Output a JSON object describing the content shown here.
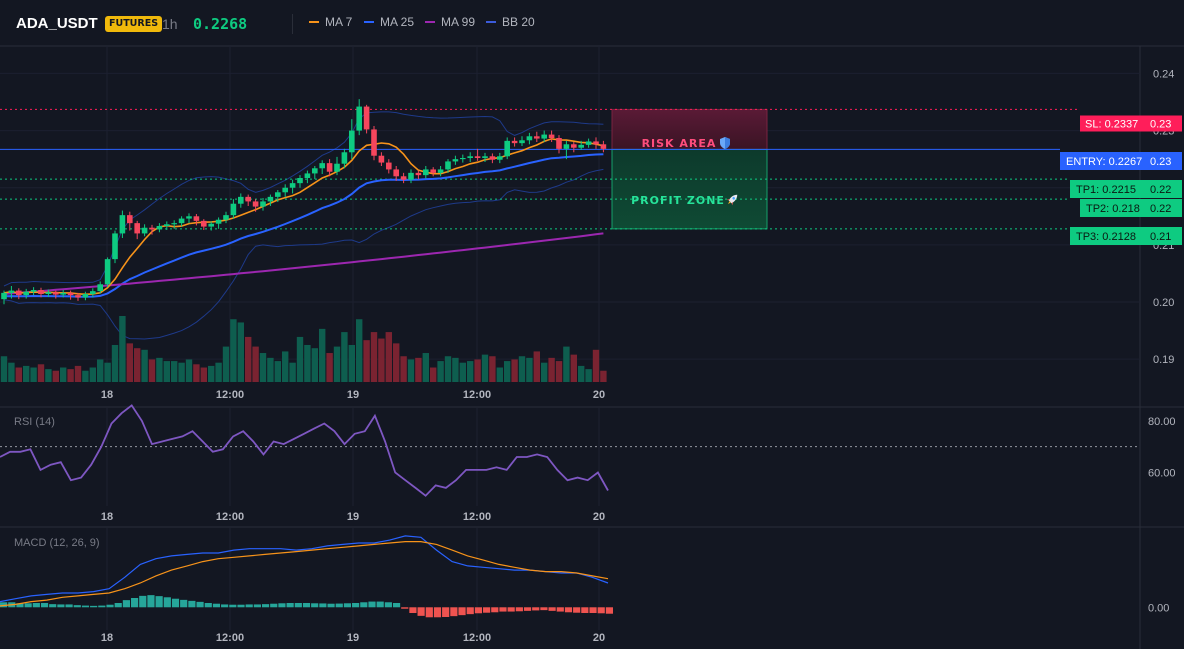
{
  "header": {
    "symbol": "ADA_USDT",
    "badge": "FUTURES",
    "interval": "1h",
    "last_price": "0.2268",
    "indicators": [
      {
        "label": "MA 7",
        "color": "#f7931a"
      },
      {
        "label": "MA 25",
        "color": "#2962ff"
      },
      {
        "label": "MA 99",
        "color": "#9c27b0"
      },
      {
        "label": "BB 20",
        "color": "#1e3a8a"
      }
    ]
  },
  "colors": {
    "background": "#131722",
    "up": "#0ecb81",
    "down": "#f6465d",
    "up_volume": "#0e5e4f",
    "down_volume": "#7a2331",
    "ma7": "#f7931a",
    "ma25": "#2962ff",
    "ma99": "#9c27b0",
    "bb": "#1e3a8a",
    "rsi": "#7e57c2",
    "macd_line": "#2962ff",
    "signal_line": "#f7931a",
    "hist_pos": "#26a69a",
    "hist_neg": "#ef5350",
    "sl": "#ff1e5a",
    "entry": "#2962ff",
    "tp": "#0ecb81"
  },
  "levels": {
    "sl": {
      "label": "SL: 0.2337",
      "axis": "0.23",
      "price": 0.2337
    },
    "entry": {
      "label": "ENTRY: 0.2267",
      "axis": "0.23",
      "price": 0.2267
    },
    "tps": [
      {
        "label": "TP1: 0.2215",
        "axis": "0.22",
        "price": 0.2215
      },
      {
        "label": "TP2: 0.218",
        "axis": "0.22",
        "price": 0.218
      },
      {
        "label": "TP3: 0.2128",
        "axis": "0.21",
        "price": 0.2128
      }
    ]
  },
  "zones": {
    "risk_label": "RISK AREA",
    "risk_icon": "shield-icon",
    "profit_label": "PROFIT ZONE",
    "profit_icon": "rocket-icon"
  },
  "chart_data": [
    {
      "type": "candlestick",
      "title": "",
      "y_ticks": [
        "0.24",
        "0.23",
        "0.22",
        "0.21",
        "0.20",
        "0.19"
      ],
      "y_tick_values": [
        0.24,
        0.23,
        0.22,
        0.21,
        0.2,
        0.19
      ],
      "ylim": [
        0.186,
        0.2448
      ],
      "x_ticks": [
        "18",
        "12:00",
        "19",
        "12:00",
        "20"
      ],
      "candles": [
        [
          0.2005,
          0.2016,
          0.1996,
          0.202
        ],
        [
          0.2016,
          0.202,
          0.2006,
          0.2028
        ],
        [
          0.202,
          0.2012,
          0.2005,
          0.2024
        ],
        [
          0.2012,
          0.2018,
          0.2006,
          0.2023
        ],
        [
          0.2018,
          0.2021,
          0.2012,
          0.2026
        ],
        [
          0.2021,
          0.2014,
          0.2008,
          0.2025
        ],
        [
          0.2014,
          0.2017,
          0.2009,
          0.2022
        ],
        [
          0.2017,
          0.2013,
          0.2006,
          0.202
        ],
        [
          0.2013,
          0.2016,
          0.2008,
          0.2021
        ],
        [
          0.2016,
          0.2012,
          0.2004,
          0.202
        ],
        [
          0.2012,
          0.2008,
          0.2002,
          0.2016
        ],
        [
          0.2008,
          0.2014,
          0.2003,
          0.2018
        ],
        [
          0.2014,
          0.2019,
          0.2008,
          0.2024
        ],
        [
          0.2019,
          0.2031,
          0.2015,
          0.2036
        ],
        [
          0.2031,
          0.2075,
          0.2026,
          0.2078
        ],
        [
          0.2075,
          0.212,
          0.2068,
          0.2125
        ],
        [
          0.212,
          0.2152,
          0.2112,
          0.216
        ],
        [
          0.2152,
          0.2138,
          0.2125,
          0.2158
        ],
        [
          0.2138,
          0.212,
          0.211,
          0.2142
        ],
        [
          0.212,
          0.213,
          0.2115,
          0.2136
        ],
        [
          0.213,
          0.2127,
          0.2118,
          0.2135
        ],
        [
          0.2127,
          0.2133,
          0.2122,
          0.2138
        ],
        [
          0.2133,
          0.2136,
          0.2126,
          0.2141
        ],
        [
          0.2136,
          0.2138,
          0.2128,
          0.2143
        ],
        [
          0.2138,
          0.2146,
          0.2132,
          0.215
        ],
        [
          0.2146,
          0.215,
          0.2138,
          0.2155
        ],
        [
          0.215,
          0.2142,
          0.2134,
          0.2154
        ],
        [
          0.2142,
          0.2132,
          0.2126,
          0.2145
        ],
        [
          0.2132,
          0.2137,
          0.2125,
          0.2141
        ],
        [
          0.2137,
          0.2144,
          0.2128,
          0.2148
        ],
        [
          0.2144,
          0.2152,
          0.2138,
          0.2158
        ],
        [
          0.2152,
          0.2172,
          0.2146,
          0.218
        ],
        [
          0.2172,
          0.2184,
          0.2165,
          0.219
        ],
        [
          0.2184,
          0.2176,
          0.2168,
          0.2188
        ],
        [
          0.2176,
          0.2167,
          0.2158,
          0.218
        ],
        [
          0.2167,
          0.2176,
          0.216,
          0.2182
        ],
        [
          0.2176,
          0.2184,
          0.2168,
          0.2188
        ],
        [
          0.2184,
          0.2192,
          0.2175,
          0.2196
        ],
        [
          0.2192,
          0.22,
          0.2184,
          0.2206
        ],
        [
          0.22,
          0.2208,
          0.219,
          0.2214
        ],
        [
          0.2208,
          0.2217,
          0.22,
          0.2222
        ],
        [
          0.2217,
          0.2225,
          0.2208,
          0.223
        ],
        [
          0.2225,
          0.2234,
          0.2215,
          0.2238
        ],
        [
          0.2234,
          0.2243,
          0.2224,
          0.2248
        ],
        [
          0.2243,
          0.2228,
          0.222,
          0.225
        ],
        [
          0.2228,
          0.2242,
          0.2222,
          0.2254
        ],
        [
          0.2242,
          0.2262,
          0.2234,
          0.2268
        ],
        [
          0.2262,
          0.23,
          0.225,
          0.232
        ],
        [
          0.23,
          0.2342,
          0.2292,
          0.2355
        ],
        [
          0.2342,
          0.2302,
          0.2295,
          0.2345
        ],
        [
          0.2302,
          0.2256,
          0.2248,
          0.2308
        ],
        [
          0.2256,
          0.2244,
          0.2238,
          0.2262
        ],
        [
          0.2244,
          0.2232,
          0.2225,
          0.225
        ],
        [
          0.2232,
          0.222,
          0.2212,
          0.2238
        ],
        [
          0.222,
          0.2214,
          0.2208,
          0.2226
        ],
        [
          0.2214,
          0.2226,
          0.2208,
          0.2232
        ],
        [
          0.2226,
          0.2222,
          0.2215,
          0.223
        ],
        [
          0.2222,
          0.2232,
          0.2216,
          0.2238
        ],
        [
          0.2232,
          0.2226,
          0.222,
          0.2236
        ],
        [
          0.2226,
          0.2232,
          0.222,
          0.2238
        ],
        [
          0.2232,
          0.2246,
          0.2226,
          0.225
        ],
        [
          0.2246,
          0.225,
          0.224,
          0.2256
        ],
        [
          0.225,
          0.2252,
          0.2244,
          0.2258
        ],
        [
          0.2252,
          0.2255,
          0.2245,
          0.2262
        ],
        [
          0.2255,
          0.2252,
          0.2247,
          0.2268
        ],
        [
          0.2252,
          0.2255,
          0.2245,
          0.2261
        ],
        [
          0.2255,
          0.2249,
          0.2243,
          0.226
        ],
        [
          0.2249,
          0.2255,
          0.2243,
          0.2261
        ],
        [
          0.2255,
          0.2282,
          0.225,
          0.2288
        ],
        [
          0.2282,
          0.2278,
          0.2272,
          0.2288
        ],
        [
          0.2278,
          0.2283,
          0.2273,
          0.229
        ],
        [
          0.2283,
          0.229,
          0.2276,
          0.2296
        ],
        [
          0.229,
          0.2286,
          0.228,
          0.2298
        ],
        [
          0.2286,
          0.2293,
          0.228,
          0.23
        ],
        [
          0.2293,
          0.2287,
          0.228,
          0.23
        ],
        [
          0.2287,
          0.2268,
          0.226,
          0.2292
        ],
        [
          0.2268,
          0.2276,
          0.225,
          0.2282
        ],
        [
          0.2276,
          0.227,
          0.2262,
          0.228
        ],
        [
          0.227,
          0.2275,
          0.2266,
          0.2282
        ],
        [
          0.2275,
          0.2281,
          0.227,
          0.2286
        ],
        [
          0.2281,
          0.2276,
          0.2268,
          0.2288
        ],
        [
          0.2276,
          0.2268,
          0.2262,
          0.2282
        ]
      ],
      "volume": [
        16,
        12,
        9,
        10,
        9,
        11,
        8,
        7,
        9,
        8,
        10,
        7,
        9,
        14,
        12,
        23,
        41,
        24,
        21,
        20,
        14,
        15,
        13,
        13,
        12,
        14,
        11,
        9,
        10,
        12,
        22,
        39,
        37,
        28,
        22,
        18,
        15,
        13,
        19,
        12,
        28,
        23,
        21,
        33,
        18,
        22,
        31,
        23,
        39,
        26,
        31,
        27,
        31,
        24,
        16,
        14,
        15,
        18,
        9,
        13,
        16,
        15,
        12,
        13,
        14,
        17,
        16,
        9,
        13,
        14,
        16,
        15,
        19,
        12,
        15,
        13,
        22,
        17,
        10,
        8,
        20,
        7
      ]
    },
    {
      "type": "line",
      "title": "RSI (14)",
      "y_ticks": [
        "80.00",
        "60.00"
      ],
      "y_tick_values": [
        80,
        60
      ],
      "ylim": [
        47,
        85
      ],
      "series": [
        {
          "name": "RSI (14)",
          "values": [
            66,
            68,
            68,
            69,
            61,
            63,
            64,
            57,
            58,
            63,
            70,
            79,
            83,
            86,
            80,
            71,
            72,
            73,
            74,
            76,
            72,
            68,
            69,
            74,
            76,
            72,
            67,
            72,
            71,
            73,
            75,
            77,
            79,
            76,
            71,
            75,
            76,
            82,
            72,
            60,
            57,
            54,
            51,
            55,
            54,
            57,
            61,
            61,
            61,
            62,
            61,
            66,
            66,
            67,
            66,
            61,
            57,
            58,
            57,
            60,
            53
          ]
        }
      ]
    },
    {
      "type": "line",
      "title": "MACD (12, 26, 9)",
      "y_ticks": [
        "0.00"
      ],
      "y_tick_values": [
        0
      ],
      "ylim": [
        -0.00145,
        0.00555
      ],
      "series": [
        {
          "name": "MACD",
          "values": [
            0.0004,
            0.0006,
            0.0008,
            0.0009,
            0.001,
            0.001,
            0.0011,
            0.0013,
            0.0021,
            0.003,
            0.0034,
            0.0036,
            0.0037,
            0.0038,
            0.0038,
            0.004,
            0.0041,
            0.0041,
            0.0041,
            0.004,
            0.0041,
            0.0043,
            0.0044,
            0.0045,
            0.0045,
            0.0047,
            0.005,
            0.0049,
            0.004,
            0.0032,
            0.0029,
            0.0028,
            0.0027,
            0.0026,
            0.0026,
            0.0025,
            0.0024,
            0.0024,
            0.0021,
            0.0017
          ]
        },
        {
          "name": "Signal",
          "values": [
            0.0001,
            0.0002,
            0.0004,
            0.0005,
            0.0007,
            0.0008,
            0.0009,
            0.001,
            0.0013,
            0.0017,
            0.0022,
            0.0026,
            0.0029,
            0.0032,
            0.0034,
            0.0035,
            0.0036,
            0.0037,
            0.0038,
            0.0039,
            0.004,
            0.0041,
            0.0042,
            0.0043,
            0.0044,
            0.0045,
            0.0046,
            0.0046,
            0.0044,
            0.004,
            0.0036,
            0.0033,
            0.003,
            0.0028,
            0.0026,
            0.0025,
            0.0025,
            0.0024,
            0.0022,
            0.002
          ]
        }
      ],
      "histogram": [
        0.00035,
        0.00035,
        0.00028,
        0.00028,
        0.0003,
        0.0003,
        0.00022,
        0.0002,
        0.0002,
        0.00015,
        0.00012,
        0.0001,
        0.00012,
        0.00018,
        0.0003,
        0.0005,
        0.00065,
        0.0008,
        0.00085,
        0.00078,
        0.0007,
        0.0006,
        0.00052,
        0.00045,
        0.00038,
        0.0003,
        0.00025,
        0.0002,
        0.00018,
        0.00018,
        0.0002,
        0.0002,
        0.00022,
        0.00025,
        0.00028,
        0.0003,
        0.0003,
        0.0003,
        0.00028,
        0.00027,
        0.00025,
        0.00026,
        0.00028,
        0.0003,
        0.00035,
        0.0004,
        0.0004,
        0.00035,
        0.0003,
        -0.0001,
        -0.0004,
        -0.0006,
        -0.0007,
        -0.0007,
        -0.00068,
        -0.00062,
        -0.00055,
        -0.00048,
        -0.00042,
        -0.00038,
        -0.00035,
        -0.0003,
        -0.0003,
        -0.00028,
        -0.00025,
        -0.00022,
        -0.0002,
        -0.00025,
        -0.0003,
        -0.00035,
        -0.00038,
        -0.0004,
        -0.0004,
        -0.00042,
        -0.00045
      ]
    }
  ]
}
